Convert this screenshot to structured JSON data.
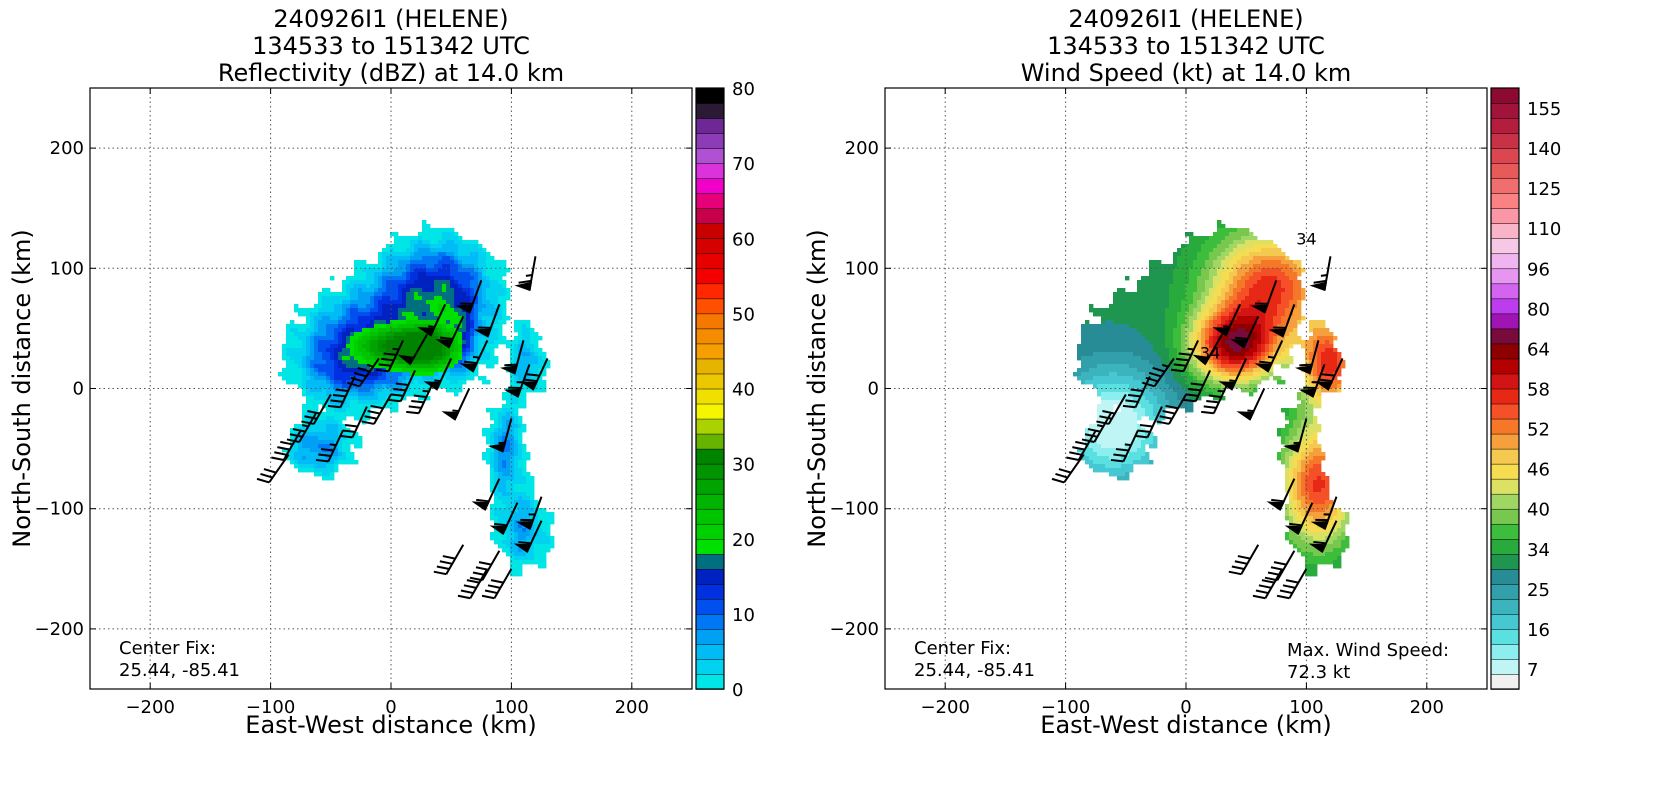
{
  "chart_data": [
    {
      "type": "heatmap",
      "title": [
        "240926I1 (HELENE)",
        "134533 to 151342 UTC",
        "Reflectivity (dBZ) at 14.0 km"
      ],
      "xlabel": "East-West distance (km)",
      "ylabel": "North-South distance (km)",
      "xlim": [
        -250,
        250
      ],
      "ylim": [
        -250,
        250
      ],
      "x_ticks": [
        -200,
        -100,
        0,
        100,
        200
      ],
      "y_ticks": [
        -200,
        -100,
        0,
        100,
        200
      ],
      "x_tick_labels": [
        "−200",
        "−100",
        "0",
        "100",
        "200"
      ],
      "y_tick_labels": [
        "−200",
        "−100",
        "0",
        "100",
        "200"
      ],
      "grid": true,
      "annotation": [
        "Center Fix:",
        "25.44, -85.41"
      ],
      "colorbar": {
        "range": [
          0,
          80
        ],
        "step": 2.5,
        "tick_values": [
          0,
          10,
          20,
          30,
          40,
          50,
          60,
          70,
          80
        ],
        "tick_labels": [
          "0",
          "10",
          "20",
          "30",
          "40",
          "50",
          "60",
          "70",
          "80"
        ],
        "colors": [
          "#00e6e6",
          "#00d2f0",
          "#00bbf5",
          "#00a0f5",
          "#0078f5",
          "#0050f0",
          "#0030e0",
          "#0022c0",
          "#007080",
          "#00e000",
          "#00d000",
          "#00c400",
          "#00b400",
          "#00a400",
          "#009400",
          "#008400",
          "#66b400",
          "#aad200",
          "#f5f500",
          "#f0e000",
          "#ebc800",
          "#e6b400",
          "#f5a000",
          "#f58c00",
          "#f57800",
          "#ff5000",
          "#ff2800",
          "#f50000",
          "#e60000",
          "#d50000",
          "#c80000",
          "#c8004a",
          "#e6007a",
          "#f000c8",
          "#dc32dc",
          "#b050d2",
          "#8c3cb4",
          "#6e2896",
          "#2a1a34",
          "#000000"
        ]
      },
      "wind_barbs": true
    },
    {
      "type": "heatmap",
      "title": [
        "240926I1 (HELENE)",
        "134533 to 151342 UTC",
        "Wind Speed (kt) at 14.0 km"
      ],
      "xlabel": "East-West distance (km)",
      "ylabel": "North-South distance (km)",
      "xlim": [
        -250,
        250
      ],
      "ylim": [
        -250,
        250
      ],
      "x_ticks": [
        -200,
        -100,
        0,
        100,
        200
      ],
      "y_ticks": [
        -200,
        -100,
        0,
        100,
        200
      ],
      "x_tick_labels": [
        "−200",
        "−100",
        "0",
        "100",
        "200"
      ],
      "y_tick_labels": [
        "−200",
        "−100",
        "0",
        "100",
        "200"
      ],
      "grid": true,
      "annotation": [
        "Center Fix:",
        "25.44, -85.41"
      ],
      "annotation_right": [
        "Max. Wind Speed:",
        "72.3 kt"
      ],
      "max_wind_speed_kt": 72.3,
      "contour_label": "34",
      "colorbar": {
        "levels": 30,
        "tick_labels": [
          "7",
          "16",
          "25",
          "34",
          "40",
          "46",
          "52",
          "58",
          "64",
          "80",
          "96",
          "110",
          "125",
          "140",
          "155"
        ],
        "colors": [
          "#f0f0f0",
          "#c0f5f5",
          "#8ceeee",
          "#5ae0e0",
          "#46c8d2",
          "#3cb4be",
          "#32a0aa",
          "#288c96",
          "#1e9650",
          "#28aa3c",
          "#3cbe3c",
          "#78c850",
          "#a0d764",
          "#dce164",
          "#f5dc50",
          "#f5c850",
          "#f5a03c",
          "#f57828",
          "#f55028",
          "#e62814",
          "#d21414",
          "#b40000",
          "#8c0000",
          "#780a3c",
          "#a014b4",
          "#be3cf0",
          "#d264f0",
          "#e696f0",
          "#f0b4f0",
          "#f5c8e6",
          "#fab4c8",
          "#fa96a5",
          "#fa8282",
          "#f06e6e",
          "#e65a5a",
          "#dc4650",
          "#c83246",
          "#b41e3c",
          "#a0143c",
          "#8c0a32"
        ]
      },
      "wind_barbs": true
    }
  ]
}
